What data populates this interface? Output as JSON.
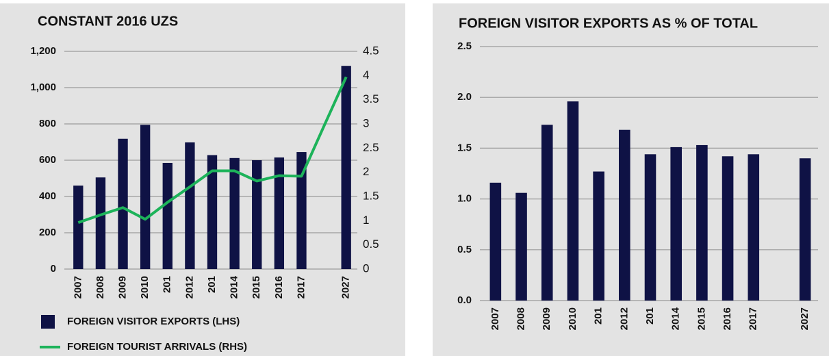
{
  "chart_data": [
    {
      "type": "bar",
      "title": "CONSTANT 2016 UZS",
      "categories": [
        "2007",
        "2008",
        "2009",
        "2010",
        "201",
        "2012",
        "201",
        "2014",
        "2015",
        "2016",
        "2017",
        null,
        "2027"
      ],
      "series": [
        {
          "name": "FOREIGN VISITOR EXPORTS (LHS)",
          "type": "bar",
          "color": "#0f1245",
          "values": [
            460,
            505,
            718,
            795,
            585,
            698,
            628,
            612,
            600,
            615,
            645,
            null,
            1120
          ]
        },
        {
          "name": "FOREIGN TOURIST ARRIVALS (RHS)",
          "type": "line",
          "axis": "y2",
          "color": "#1db35a",
          "values": [
            0.96,
            1.12,
            1.27,
            1.03,
            1.38,
            1.7,
            2.03,
            2.03,
            1.82,
            1.93,
            1.92,
            2.95,
            3.97
          ]
        }
      ],
      "ylim": [
        0,
        1200
      ],
      "yticks": [
        0,
        200,
        400,
        600,
        800,
        {
          "value": 1000,
          "label": "1,000"
        },
        {
          "value": 1200,
          "label": "1,200"
        }
      ],
      "y2lim": [
        0,
        4.5
      ],
      "y2ticks": [
        0,
        0.5,
        1,
        1.5,
        2,
        2.5,
        3,
        3.5,
        4,
        4.5
      ],
      "grid": true,
      "legend": "bottom"
    },
    {
      "type": "bar",
      "title": "FOREIGN VISITOR EXPORTS AS % OF TOTAL",
      "categories": [
        "2007",
        "2008",
        "2009",
        "2010",
        "201",
        "2012",
        "201",
        "2014",
        "2015",
        "2016",
        "2017",
        null,
        "2027"
      ],
      "series": [
        {
          "type": "bar",
          "color": "#0f1245",
          "values": [
            1.16,
            1.06,
            1.73,
            1.96,
            1.27,
            1.68,
            1.44,
            1.51,
            1.53,
            1.42,
            1.44,
            null,
            1.4
          ]
        }
      ],
      "ylim": [
        0,
        2.5
      ],
      "yticks": [
        {
          "value": 0,
          "label": "0.0"
        },
        0.5,
        {
          "value": 1,
          "label": "1.0"
        },
        1.5,
        {
          "value": 2,
          "label": "2.0"
        },
        2.5
      ],
      "grid": true
    }
  ]
}
